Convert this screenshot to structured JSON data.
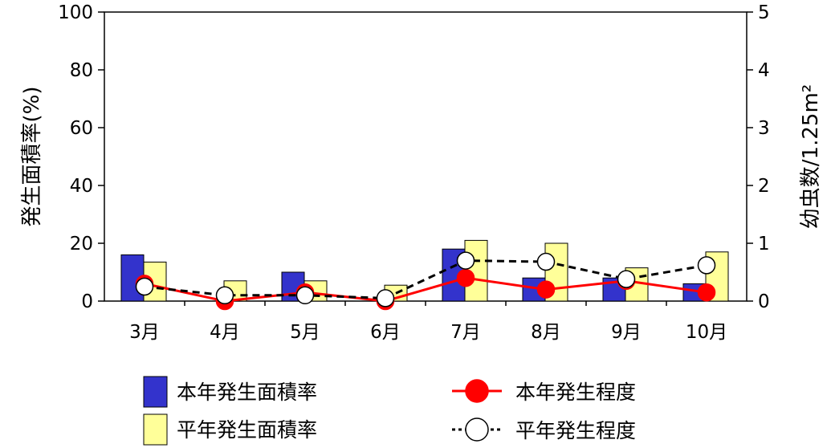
{
  "chart_data": {
    "type": "bar",
    "categories": [
      "3月",
      "4月",
      "5月",
      "6月",
      "7月",
      "8月",
      "9月",
      "10月"
    ],
    "bar_series": [
      {
        "name": "本年発生面積率",
        "color": "#3333cc",
        "values": [
          16,
          0,
          10,
          0,
          18,
          8,
          8,
          6
        ]
      },
      {
        "name": "平年発生面積率",
        "color": "#ffff99",
        "values": [
          13.5,
          7,
          7,
          5.5,
          21,
          20,
          11.5,
          17
        ]
      }
    ],
    "line_series": [
      {
        "name": "本年発生程度",
        "axis": "right",
        "color": "#ff0000",
        "values": [
          0.3,
          0,
          0.15,
          0,
          0.4,
          0.2,
          0.35,
          0.15
        ]
      },
      {
        "name": "平年発生程度",
        "axis": "right",
        "color": "#000000",
        "values": [
          0.25,
          0.1,
          0.1,
          0.05,
          0.7,
          0.68,
          0.38,
          0.62
        ]
      }
    ],
    "ylabel": "発生面積率(%)",
    "y2label": "幼虫数/1.25m²",
    "ylim": [
      0,
      100
    ],
    "y2lim": [
      0,
      5
    ],
    "yticks": [
      "0",
      "20",
      "40",
      "60",
      "80",
      "100"
    ],
    "y2ticks": [
      "0",
      "1",
      "2",
      "3",
      "4",
      "5"
    ],
    "grid": false,
    "legend_position": "bottom"
  }
}
